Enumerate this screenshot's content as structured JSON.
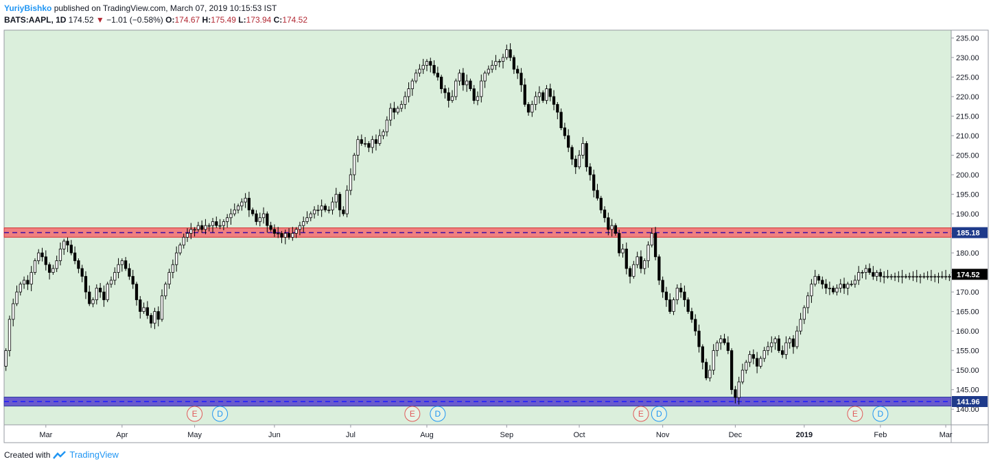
{
  "header": {
    "author": "YuriyBishko",
    "published_text": "published on TradingView.com, March 07, 2019 10:15:53 IST",
    "symbol": "BATS:AAPL, 1D",
    "last": "174.52",
    "change_arrow": "▼",
    "change": "−1.01 (−0.58%)",
    "o_label": "O:",
    "o_value": "174.67",
    "h_label": "H:",
    "h_value": "175.49",
    "l_label": "L:",
    "l_value": "173.94",
    "c_label": "C:",
    "c_value": "174.52"
  },
  "footer": {
    "created_with": "Created with",
    "brand": "TradingView",
    "logo_icon": "tradingview-logo-icon"
  },
  "colors": {
    "background": "#dbefdc",
    "candle": "#000000",
    "resistance_band": "#f08080",
    "resistance_line": "#3a0ca3",
    "support_band": "#6a5acd",
    "support_line": "#1a1aff",
    "earnings": "#e05a5a",
    "dividend": "#2196f3"
  },
  "chart_data": {
    "type": "candlestick",
    "y_range": [
      136,
      237
    ],
    "y_ticks": [
      "140.00",
      "145.00",
      "150.00",
      "155.00",
      "160.00",
      "165.00",
      "170.00",
      "175.00",
      "180.00",
      "185.00",
      "190.00",
      "195.00",
      "200.00",
      "205.00",
      "210.00",
      "215.00",
      "220.00",
      "225.00",
      "230.00",
      "235.00"
    ],
    "x_tick_labels": [
      "Mar",
      "Apr",
      "May",
      "Jun",
      "Jul",
      "Aug",
      "Sep",
      "Oct",
      "Nov",
      "Dec",
      "2019",
      "Feb",
      "Mar"
    ],
    "x_tick_index": [
      11,
      32,
      52,
      74,
      95,
      116,
      138,
      158,
      181,
      201,
      220,
      241,
      259
    ],
    "total_bars": 261,
    "closes": [
      155,
      163,
      167,
      170,
      172,
      173,
      172,
      175,
      178,
      180,
      179,
      177,
      175,
      176,
      178,
      181,
      183,
      182,
      180,
      178,
      176,
      174,
      170,
      167,
      168,
      171,
      170,
      168,
      172,
      173,
      175,
      177,
      178,
      176,
      174,
      172,
      168,
      165,
      166,
      164,
      162,
      165,
      163,
      169,
      172,
      175,
      177,
      180,
      182,
      184,
      185,
      186,
      186,
      187,
      186,
      187,
      187,
      188,
      187,
      187,
      188,
      189,
      190,
      191,
      192,
      193,
      194,
      191,
      190,
      188,
      189,
      190,
      187,
      186,
      185,
      185,
      184,
      185,
      184,
      185,
      186,
      187,
      188,
      189,
      190,
      191,
      191,
      192,
      191,
      191,
      193,
      195,
      191,
      190,
      196,
      200,
      205,
      209,
      208,
      208,
      207,
      209,
      208,
      210,
      211,
      214,
      217,
      216,
      217,
      218,
      220,
      222,
      224,
      226,
      227,
      228,
      229,
      228,
      226,
      225,
      222,
      221,
      219,
      220,
      224,
      226,
      223,
      224,
      222,
      219,
      220,
      224,
      226,
      227,
      228,
      229,
      229,
      230,
      232,
      230,
      227,
      226,
      223,
      218,
      216,
      218,
      220,
      221,
      219,
      222,
      220,
      218,
      216,
      212,
      210,
      207,
      204,
      202,
      205,
      208,
      202,
      200,
      196,
      194,
      191,
      189,
      186,
      187,
      185,
      180,
      181,
      176,
      174,
      177,
      179,
      176,
      178,
      182,
      185,
      179,
      173,
      170,
      168,
      165,
      168,
      171,
      170,
      168,
      165,
      163,
      160,
      156,
      152,
      148,
      150,
      155,
      157,
      158,
      157,
      155,
      145,
      143,
      147,
      150,
      152,
      154,
      153,
      151,
      153,
      155,
      156,
      157,
      158,
      155,
      154,
      157,
      158,
      156,
      160,
      163,
      166,
      169,
      172,
      174,
      173,
      172,
      171,
      171,
      170,
      171,
      172,
      171,
      172,
      172,
      173,
      175,
      175,
      176,
      175,
      174,
      175,
      174,
      174,
      174,
      174,
      174,
      174,
      174,
      174,
      174,
      174,
      174,
      174,
      174,
      174,
      174,
      174,
      174,
      174,
      174,
      174
    ],
    "resistance": {
      "value": 185.18,
      "label": "185.18",
      "band": [
        184.0,
        186.4
      ]
    },
    "support": {
      "value": 141.96,
      "label": "141.96",
      "band": [
        140.8,
        143.1
      ]
    },
    "last_price": {
      "value": 174.52,
      "label": "174.52"
    },
    "earnings_markers": {
      "letter": "E",
      "bars": [
        52,
        112,
        175,
        234
      ]
    },
    "dividend_markers": {
      "letter": "D",
      "bars": [
        59,
        119,
        180,
        241
      ]
    }
  }
}
